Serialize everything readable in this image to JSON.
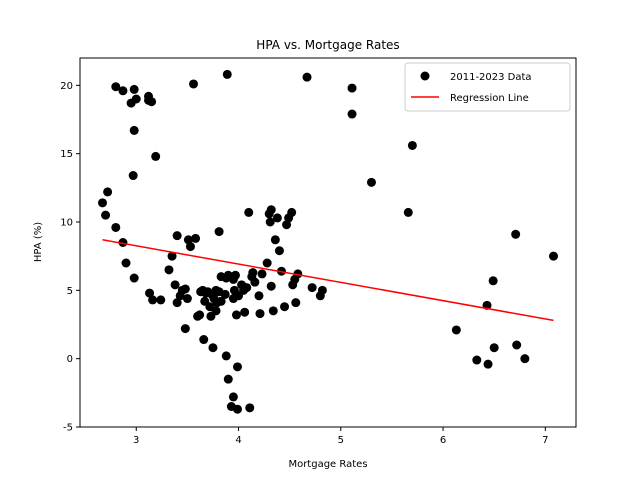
{
  "chart_data": {
    "type": "scatter",
    "title": "HPA vs. Mortgage Rates",
    "xlabel": "Mortgage Rates",
    "ylabel": "HPA (%)",
    "xlim": [
      2.45,
      7.3
    ],
    "ylim": [
      -5,
      22
    ],
    "xticks": [
      3,
      4,
      5,
      6,
      7
    ],
    "yticks": [
      -5,
      0,
      5,
      10,
      15,
      20
    ],
    "grid": false,
    "legend_position": "top-right",
    "series": [
      {
        "name": "2011-2023 Data",
        "kind": "scatter",
        "color": "#000000",
        "points": [
          [
            2.67,
            11.4
          ],
          [
            2.7,
            10.5
          ],
          [
            2.72,
            12.2
          ],
          [
            2.8,
            9.6
          ],
          [
            2.87,
            8.5
          ],
          [
            2.9,
            7.0
          ],
          [
            2.98,
            5.9
          ],
          [
            2.8,
            19.9
          ],
          [
            2.87,
            19.6
          ],
          [
            2.95,
            18.7
          ],
          [
            2.98,
            19.7
          ],
          [
            3.0,
            19.0
          ],
          [
            2.98,
            16.7
          ],
          [
            2.97,
            13.4
          ],
          [
            3.12,
            19.2
          ],
          [
            3.12,
            18.9
          ],
          [
            3.15,
            18.8
          ],
          [
            3.19,
            14.8
          ],
          [
            3.13,
            4.8
          ],
          [
            3.16,
            4.3
          ],
          [
            3.24,
            4.3
          ],
          [
            3.32,
            6.5
          ],
          [
            3.35,
            7.5
          ],
          [
            3.4,
            9.0
          ],
          [
            3.38,
            5.4
          ],
          [
            3.4,
            4.1
          ],
          [
            3.45,
            5.0
          ],
          [
            3.48,
            5.1
          ],
          [
            3.43,
            4.6
          ],
          [
            3.5,
            4.4
          ],
          [
            3.48,
            2.2
          ],
          [
            3.51,
            8.7
          ],
          [
            3.53,
            8.2
          ],
          [
            3.58,
            8.8
          ],
          [
            3.56,
            20.1
          ],
          [
            3.6,
            3.1
          ],
          [
            3.62,
            3.2
          ],
          [
            3.63,
            4.9
          ],
          [
            3.65,
            5.0
          ],
          [
            3.67,
            4.2
          ],
          [
            3.66,
            1.4
          ],
          [
            3.68,
            4.8
          ],
          [
            3.7,
            4.9
          ],
          [
            3.72,
            3.8
          ],
          [
            3.73,
            3.1
          ],
          [
            3.74,
            4.7
          ],
          [
            3.75,
            0.8
          ],
          [
            3.76,
            4.4
          ],
          [
            3.78,
            3.5
          ],
          [
            3.78,
            5.0
          ],
          [
            3.79,
            4.1
          ],
          [
            3.81,
            4.9
          ],
          [
            3.81,
            9.3
          ],
          [
            3.83,
            6.0
          ],
          [
            3.83,
            4.2
          ],
          [
            3.87,
            4.7
          ],
          [
            3.88,
            5.9
          ],
          [
            3.88,
            0.2
          ],
          [
            3.9,
            6.1
          ],
          [
            3.89,
            20.8
          ],
          [
            3.9,
            -1.5
          ],
          [
            3.93,
            -3.5
          ],
          [
            3.95,
            -2.8
          ],
          [
            3.95,
            4.4
          ],
          [
            3.95,
            5.8
          ],
          [
            3.96,
            5.0
          ],
          [
            3.97,
            6.1
          ],
          [
            3.98,
            3.2
          ],
          [
            3.99,
            -3.7
          ],
          [
            3.99,
            -0.6
          ],
          [
            4.0,
            4.6
          ],
          [
            4.03,
            5.4
          ],
          [
            4.05,
            5.0
          ],
          [
            4.06,
            3.4
          ],
          [
            4.08,
            5.2
          ],
          [
            4.1,
            10.7
          ],
          [
            4.11,
            -3.6
          ],
          [
            4.13,
            6.0
          ],
          [
            4.14,
            6.3
          ],
          [
            4.16,
            5.6
          ],
          [
            4.2,
            4.6
          ],
          [
            4.21,
            3.3
          ],
          [
            4.23,
            6.2
          ],
          [
            4.28,
            7.0
          ],
          [
            4.3,
            10.6
          ],
          [
            4.32,
            10.9
          ],
          [
            4.31,
            10.0
          ],
          [
            4.32,
            5.3
          ],
          [
            4.34,
            3.5
          ],
          [
            4.36,
            8.7
          ],
          [
            4.38,
            10.3
          ],
          [
            4.4,
            7.9
          ],
          [
            4.42,
            6.4
          ],
          [
            4.45,
            3.8
          ],
          [
            4.47,
            9.8
          ],
          [
            4.49,
            10.3
          ],
          [
            4.52,
            10.7
          ],
          [
            4.53,
            5.4
          ],
          [
            4.55,
            5.8
          ],
          [
            4.56,
            4.1
          ],
          [
            4.58,
            6.2
          ],
          [
            4.67,
            20.6
          ],
          [
            4.72,
            5.2
          ],
          [
            4.8,
            4.6
          ],
          [
            4.82,
            5.0
          ],
          [
            5.11,
            19.8
          ],
          [
            5.11,
            17.9
          ],
          [
            5.3,
            12.9
          ],
          [
            5.66,
            10.7
          ],
          [
            5.7,
            15.6
          ],
          [
            6.13,
            2.1
          ],
          [
            6.33,
            -0.1
          ],
          [
            6.43,
            3.9
          ],
          [
            6.44,
            -0.4
          ],
          [
            6.49,
            5.7
          ],
          [
            6.5,
            0.8
          ],
          [
            6.71,
            9.1
          ],
          [
            6.72,
            1.0
          ],
          [
            6.8,
            0.0
          ],
          [
            7.08,
            7.5
          ]
        ]
      },
      {
        "name": "Regression Line",
        "kind": "line",
        "color": "#ff0000",
        "points": [
          [
            2.67,
            8.7
          ],
          [
            7.08,
            2.8
          ]
        ]
      }
    ]
  }
}
